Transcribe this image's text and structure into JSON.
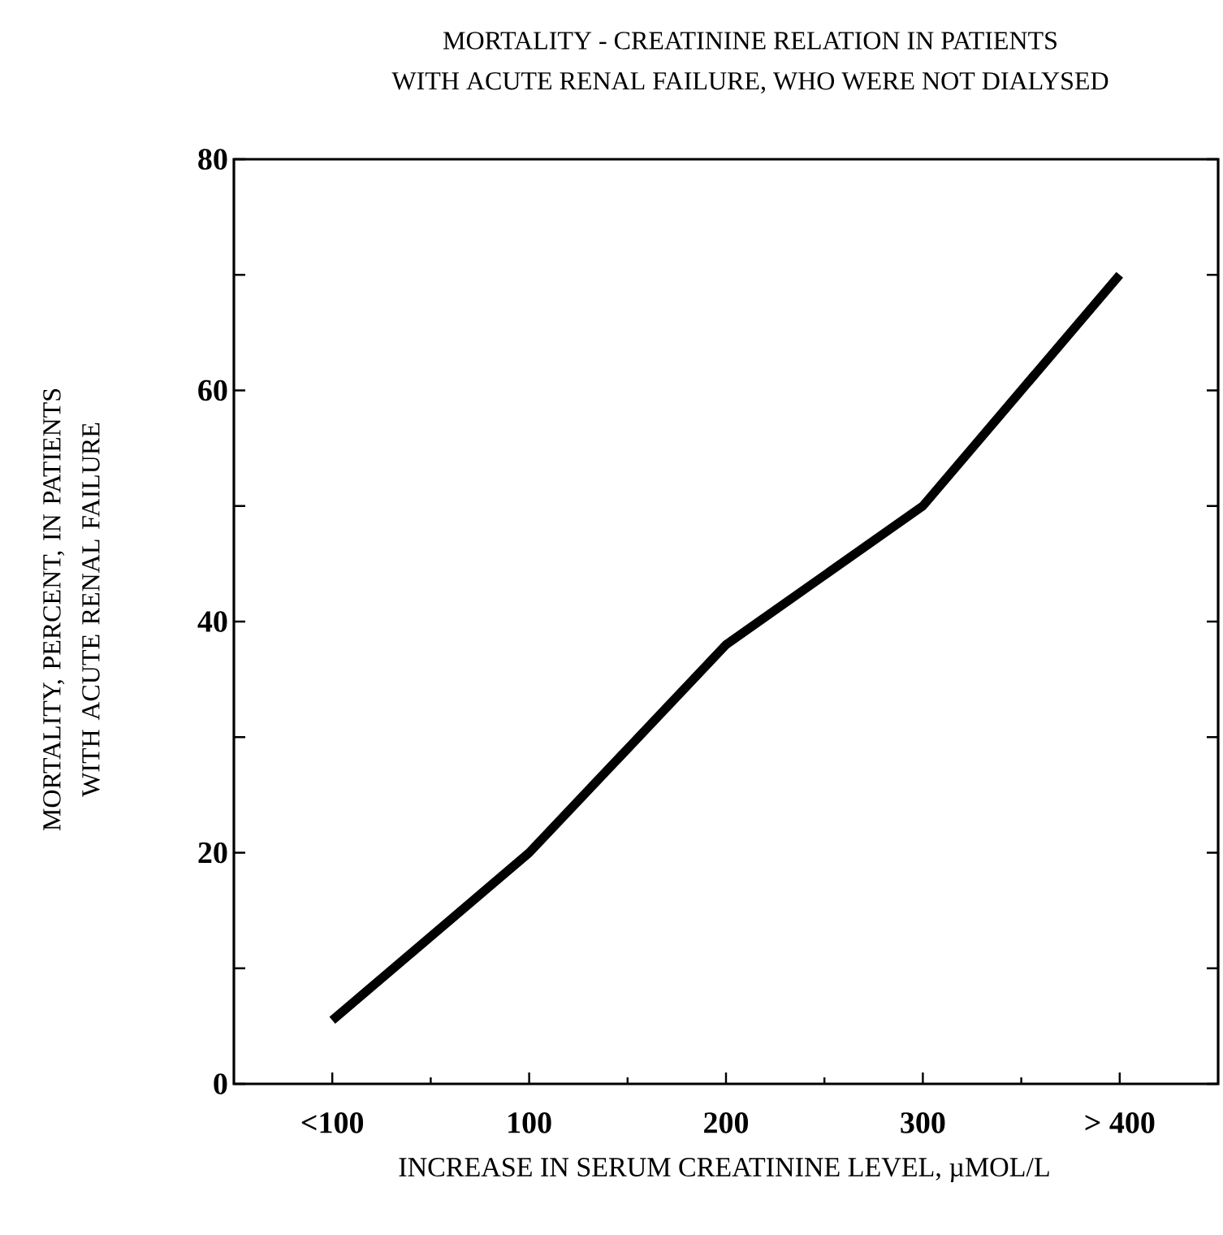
{
  "chart_data": {
    "type": "line",
    "title": "MORTALITY - CREATININE RELATION IN PATIENTS",
    "subtitle": "WITH ACUTE RENAL FAILURE, WHO WERE NOT DIALYSED",
    "xlabel": "INCREASE IN SERUM CREATININE LEVEL, µMOL/L",
    "ylabel": "MORTALITY, PERCENT, IN PATIENTS WITH ACUTE RENAL FAILURE",
    "categories": [
      "<100",
      "100",
      "200",
      "300",
      "> 400"
    ],
    "series": [
      {
        "color": "#000000",
        "values": [
          5.5,
          20,
          38,
          50,
          70
        ]
      }
    ],
    "ylim": [
      0,
      80
    ],
    "yticks": [
      0,
      {
        "value": 10,
        "label": null
      },
      20,
      {
        "value": 30,
        "label": null
      },
      40,
      {
        "value": 50,
        "label": null
      },
      60,
      {
        "value": 70,
        "label": null
      },
      80
    ],
    "marker": "none",
    "line_style": "solid"
  }
}
